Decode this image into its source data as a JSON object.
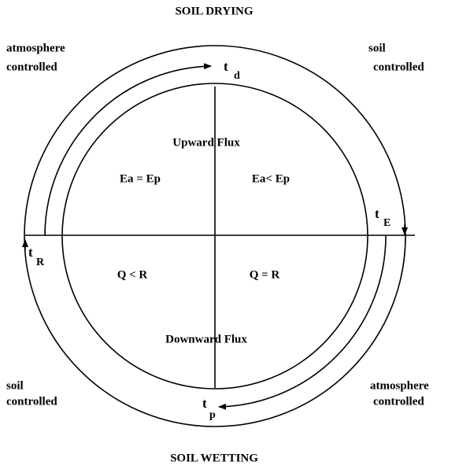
{
  "title": "SOIL DRYING",
  "footer": "SOIL WETTING",
  "corners": {
    "top_left": [
      "atmosphere",
      "controlled"
    ],
    "top_right": [
      "soil",
      "controlled"
    ],
    "bottom_left": [
      "soil",
      "controlled"
    ],
    "bottom_right": [
      "atmosphere",
      "controlled"
    ]
  },
  "quadrants": {
    "upward": "Upward Flux",
    "downward": "Downward Flux",
    "top_left": "Ea = Ep",
    "top_right": "Ea< Ep",
    "bottom_left": "Q < R",
    "bottom_right": "Q = R"
  },
  "times": {
    "td": {
      "t": "t",
      "sub": "d"
    },
    "tE": {
      "t": "t",
      "sub": "E"
    },
    "tR": {
      "t": "t",
      "sub": "R"
    },
    "tp": {
      "t": "t",
      "sub": "p"
    }
  }
}
